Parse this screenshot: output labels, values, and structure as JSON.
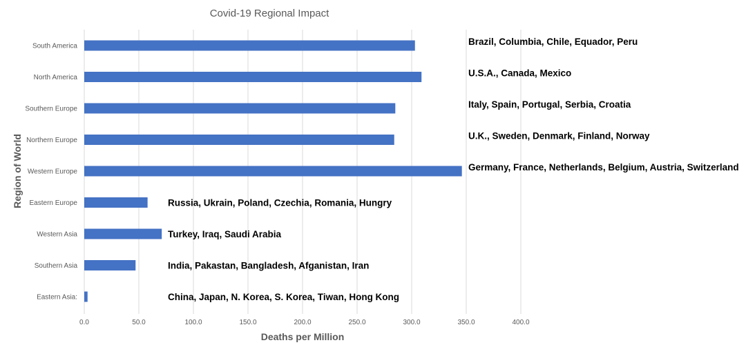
{
  "chart_data": {
    "type": "bar",
    "orientation": "horizontal",
    "title": "Covid-19 Regional Impact",
    "xlabel": "Deaths per Million",
    "ylabel": "Region of World",
    "categories": [
      "South America",
      "North America",
      "Southern Europe",
      "Northern Europe",
      "Western Europe",
      "Eastern Europe",
      "Western Asia",
      "Southern Asia",
      "Eastern Asia:"
    ],
    "values": [
      303,
      309,
      285,
      284,
      346,
      58,
      71,
      47,
      3
    ],
    "annotations": [
      "Brazil, Columbia, Chile, Equador, Peru",
      "U.S.A., Canada, Mexico",
      "Italy, Spain, Portugal, Serbia, Croatia",
      "U.K., Sweden, Denmark, Finland, Norway",
      "Germany, France, Netherlands, Belgium, Austria, Switzerland",
      "Russia, Ukrain, Poland, Czechia, Romania, Hungry",
      "Turkey, Iraq, Saudi Arabia",
      "India, Pakastan, Bangladesh, Afganistan, Iran",
      "China, Japan, N. Korea, S. Korea, Tiwan, Hong Kong"
    ],
    "xticks": [
      "0.0",
      "50.0",
      "100.0",
      "150.0",
      "200.0",
      "250.0",
      "300.0",
      "350.0",
      "400.0"
    ],
    "xlim": [
      0,
      400
    ],
    "grid": true,
    "legend": "none",
    "bar_color": "#4472c4"
  }
}
